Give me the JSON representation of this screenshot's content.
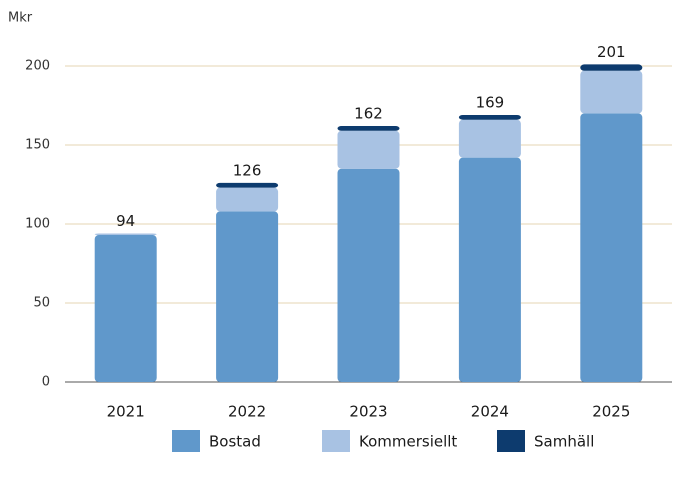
{
  "chart_data": {
    "type": "stacked_bar",
    "y_label": "Mkr",
    "categories": [
      "2021",
      "2022",
      "2023",
      "2024",
      "2025"
    ],
    "series": [
      {
        "name": "Bostad",
        "color": "#6098cb",
        "values": [
          93,
          108,
          135,
          142,
          170
        ]
      },
      {
        "name": "Kommersiellt",
        "color": "#a8c2e3",
        "values": [
          1,
          15,
          24,
          24,
          27
        ]
      },
      {
        "name": "Samhäll",
        "color": "#0d3b6e",
        "values": [
          0,
          3,
          3,
          3,
          4
        ]
      }
    ],
    "totals": [
      94,
      126,
      162,
      169,
      201
    ],
    "ylim": [
      0,
      200
    ],
    "yticks": [
      0,
      50,
      100,
      150,
      200
    ],
    "grid": true,
    "legend": "bottom"
  }
}
